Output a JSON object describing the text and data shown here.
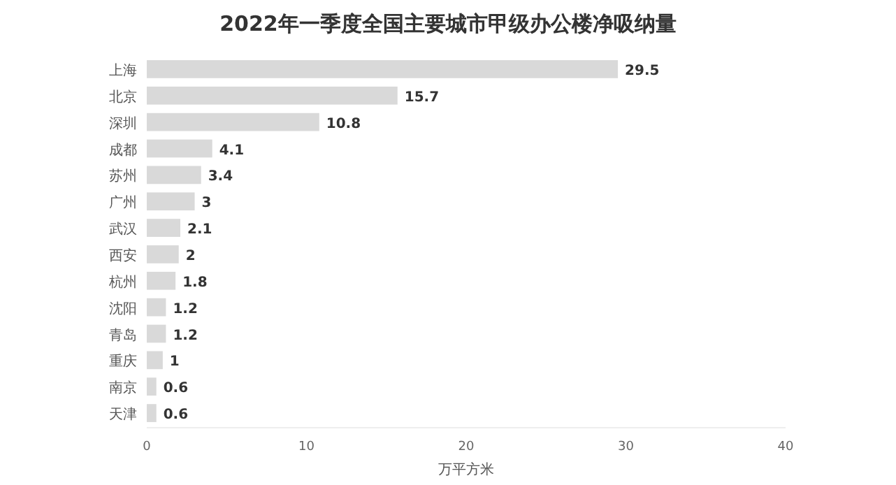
{
  "chart_data": {
    "type": "bar",
    "orientation": "horizontal",
    "title": "2022年一季度全国主要城市甲级办公楼净吸纳量",
    "xlabel": "万平方米",
    "categories": [
      "上海",
      "北京",
      "深圳",
      "成都",
      "苏州",
      "广州",
      "武汉",
      "西安",
      "杭州",
      "沈阳",
      "青岛",
      "重庆",
      "南京",
      "天津"
    ],
    "values": [
      29.5,
      15.7,
      10.8,
      4.1,
      3.4,
      3,
      2.1,
      2,
      1.8,
      1.2,
      1.2,
      1,
      0.6,
      0.6
    ],
    "color": "#d9d9d9",
    "xlim": [
      0,
      40
    ],
    "xticks": [
      0,
      10,
      20,
      30,
      40
    ],
    "data_labels": true,
    "grid": false
  }
}
